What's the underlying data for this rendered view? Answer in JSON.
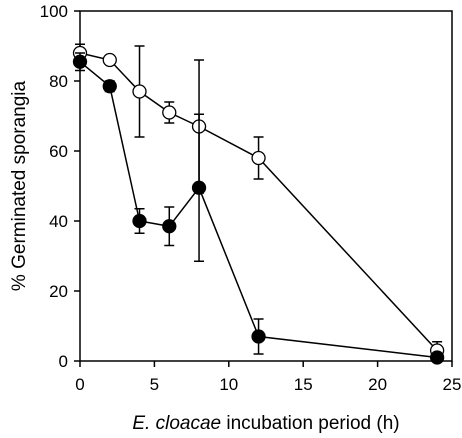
{
  "chart_data": {
    "type": "line",
    "xlabel_italic": "E. cloacae",
    "xlabel_rest": " incubation period (h)",
    "ylabel": "% Germinated sporangia",
    "xlim": [
      0,
      25
    ],
    "ylim": [
      0,
      100
    ],
    "x_ticks": [
      0,
      5,
      10,
      15,
      20,
      25
    ],
    "y_ticks": [
      0,
      20,
      40,
      60,
      80,
      100
    ],
    "grid": false,
    "series": [
      {
        "marker": "open-circle",
        "x": [
          0,
          2,
          4,
          6,
          8,
          12,
          24
        ],
        "y": [
          88,
          86,
          77,
          71,
          67,
          58,
          3
        ],
        "err": [
          2.5,
          1,
          13,
          3,
          19,
          6,
          2.5
        ]
      },
      {
        "marker": "filled-circle",
        "x": [
          0,
          2,
          4,
          6,
          8,
          12,
          24
        ],
        "y": [
          85.5,
          78.5,
          40,
          38.5,
          49.5,
          7,
          1
        ],
        "err": [
          2.5,
          1.5,
          3.5,
          5.5,
          21,
          5,
          1
        ]
      }
    ]
  }
}
